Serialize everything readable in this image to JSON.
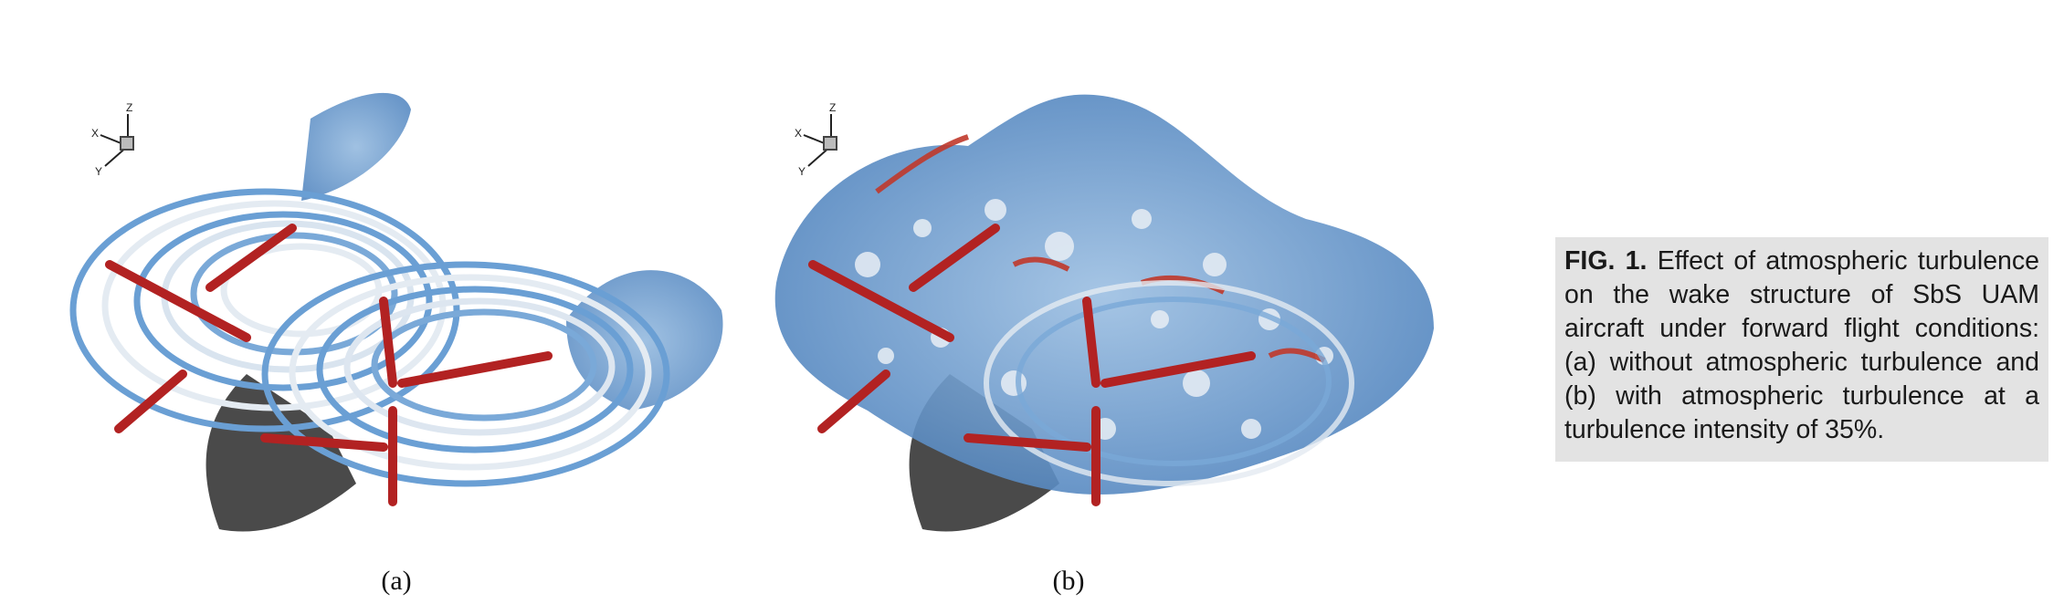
{
  "figure": {
    "panels": [
      {
        "id": "a",
        "label": "(a)",
        "axis_labels": {
          "x": "X",
          "y": "Y",
          "z": "Z"
        },
        "accent_color": "#5b8ec9",
        "rotor_color": "#b22222",
        "shadow_color": "#4a4a4a"
      },
      {
        "id": "b",
        "label": "(b)",
        "axis_labels": {
          "x": "X",
          "y": "Y",
          "z": "Z"
        },
        "accent_color": "#5b8ec9",
        "rotor_color": "#b22222",
        "shadow_color": "#4a4a4a"
      }
    ],
    "caption": {
      "label": "FIG. 1.",
      "text": "Effect of atmospheric turbulence on the wake structure of SbS UAM aircraft under forward flight conditions: (a) without atmospheric turbulence and (b) with atmospheric turbulence at a turbulence intensity of 35%."
    },
    "colors": {
      "caption_background": "#e3e3e3",
      "vortex_blue": "#6a9fd4",
      "vortex_white": "#e9eef3",
      "vortex_red": "#c0392b"
    }
  }
}
